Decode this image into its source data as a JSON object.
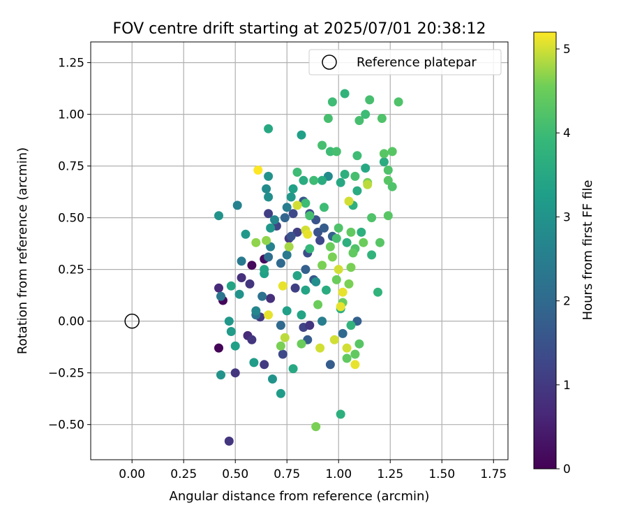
{
  "chart_data": {
    "type": "scatter",
    "title": "FOV centre drift starting at 2025/07/01 20:38:12",
    "xlabel": "Angular distance from reference (arcmin)",
    "ylabel": "Rotation from reference (arcmin)",
    "xlim": [
      -0.2,
      1.82
    ],
    "ylim": [
      -0.67,
      1.35
    ],
    "xticks": [
      "0.00",
      "0.25",
      "0.50",
      "0.75",
      "1.00",
      "1.25",
      "1.50",
      "1.75"
    ],
    "yticks": [
      "−0.50",
      "−0.25",
      "0.00",
      "0.25",
      "0.50",
      "0.75",
      "1.00",
      "1.25"
    ],
    "grid": true,
    "legend_position": "top-right",
    "legend": {
      "reference_label": "Reference platepar"
    },
    "reference_point": {
      "x": 0.0,
      "y": 0.0
    },
    "colorbar": {
      "label": "Hours from first FF file",
      "range": [
        0,
        5.2
      ],
      "ticks": [
        "0",
        "1",
        "2",
        "3",
        "4",
        "5"
      ],
      "colormap": "viridis"
    },
    "points": [
      {
        "x": 0.42,
        "y": -0.13,
        "h": 0.05
      },
      {
        "x": 0.44,
        "y": 0.1,
        "h": 0.1
      },
      {
        "x": 0.58,
        "y": 0.27,
        "h": 0.15
      },
      {
        "x": 0.64,
        "y": 0.3,
        "h": 0.2
      },
      {
        "x": 0.42,
        "y": 0.16,
        "h": 0.7
      },
      {
        "x": 0.47,
        "y": -0.58,
        "h": 0.9
      },
      {
        "x": 0.5,
        "y": -0.25,
        "h": 0.9
      },
      {
        "x": 0.53,
        "y": 0.21,
        "h": 0.8
      },
      {
        "x": 0.56,
        "y": -0.07,
        "h": 0.7
      },
      {
        "x": 0.57,
        "y": 0.18,
        "h": 0.9
      },
      {
        "x": 0.58,
        "y": -0.09,
        "h": 0.9
      },
      {
        "x": 0.62,
        "y": 0.02,
        "h": 1.0
      },
      {
        "x": 0.64,
        "y": -0.21,
        "h": 1.0
      },
      {
        "x": 0.66,
        "y": 0.52,
        "h": 1.1
      },
      {
        "x": 0.67,
        "y": 0.11,
        "h": 0.8
      },
      {
        "x": 0.7,
        "y": 0.46,
        "h": 1.2
      },
      {
        "x": 0.73,
        "y": -0.16,
        "h": 1.3
      },
      {
        "x": 0.76,
        "y": 0.4,
        "h": 1.0
      },
      {
        "x": 0.78,
        "y": 0.52,
        "h": 1.3
      },
      {
        "x": 0.8,
        "y": 0.43,
        "h": 1.1
      },
      {
        "x": 0.79,
        "y": 0.16,
        "h": 1.1
      },
      {
        "x": 0.83,
        "y": -0.03,
        "h": 1.2
      },
      {
        "x": 0.85,
        "y": 0.33,
        "h": 1.4
      },
      {
        "x": 0.86,
        "y": 0.52,
        "h": 1.4
      },
      {
        "x": 0.86,
        "y": -0.02,
        "h": 0.9
      },
      {
        "x": 0.88,
        "y": 0.2,
        "h": 1.6
      },
      {
        "x": 0.89,
        "y": 0.49,
        "h": 1.5
      },
      {
        "x": 0.9,
        "y": 0.43,
        "h": 1.5
      },
      {
        "x": 0.91,
        "y": 0.39,
        "h": 1.3
      },
      {
        "x": 0.93,
        "y": 0.45,
        "h": 1.7
      },
      {
        "x": 0.96,
        "y": -0.21,
        "h": 1.7
      },
      {
        "x": 0.97,
        "y": 0.41,
        "h": 1.8
      },
      {
        "x": 1.02,
        "y": -0.06,
        "h": 2.0
      },
      {
        "x": 1.09,
        "y": 0.0,
        "h": 1.8
      },
      {
        "x": 0.85,
        "y": -0.09,
        "h": 1.7
      },
      {
        "x": 0.84,
        "y": 0.25,
        "h": 1.8
      },
      {
        "x": 0.83,
        "y": 0.58,
        "h": 1.6
      },
      {
        "x": 0.77,
        "y": 0.41,
        "h": 1.5
      },
      {
        "x": 0.74,
        "y": 0.5,
        "h": 1.9
      },
      {
        "x": 0.72,
        "y": 0.28,
        "h": 2.0
      },
      {
        "x": 0.72,
        "y": -0.02,
        "h": 2.0
      },
      {
        "x": 0.66,
        "y": 0.31,
        "h": 2.1
      },
      {
        "x": 0.63,
        "y": 0.12,
        "h": 2.2
      },
      {
        "x": 0.6,
        "y": 0.03,
        "h": 2.2
      },
      {
        "x": 0.53,
        "y": 0.29,
        "h": 2.4
      },
      {
        "x": 0.51,
        "y": 0.56,
        "h": 2.6
      },
      {
        "x": 0.43,
        "y": 0.12,
        "h": 2.3
      },
      {
        "x": 0.67,
        "y": 0.36,
        "h": 2.6
      },
      {
        "x": 0.69,
        "y": 0.49,
        "h": 2.7
      },
      {
        "x": 0.75,
        "y": 0.55,
        "h": 2.5
      },
      {
        "x": 0.75,
        "y": 0.32,
        "h": 2.4
      },
      {
        "x": 0.92,
        "y": 0.0,
        "h": 2.5
      },
      {
        "x": 0.95,
        "y": 0.7,
        "h": 2.8
      },
      {
        "x": 0.66,
        "y": 0.6,
        "h": 2.9
      },
      {
        "x": 0.65,
        "y": 0.64,
        "h": 2.8
      },
      {
        "x": 0.66,
        "y": 0.7,
        "h": 3.0
      },
      {
        "x": 0.42,
        "y": 0.51,
        "h": 3.0
      },
      {
        "x": 0.43,
        "y": -0.26,
        "h": 3.0
      },
      {
        "x": 0.47,
        "y": 0.0,
        "h": 3.1
      },
      {
        "x": 0.48,
        "y": -0.05,
        "h": 3.2
      },
      {
        "x": 0.5,
        "y": -0.12,
        "h": 3.3
      },
      {
        "x": 0.48,
        "y": 0.17,
        "h": 3.4
      },
      {
        "x": 0.52,
        "y": 0.13,
        "h": 3.0
      },
      {
        "x": 0.55,
        "y": 0.42,
        "h": 3.1
      },
      {
        "x": 0.59,
        "y": -0.2,
        "h": 3.2
      },
      {
        "x": 0.64,
        "y": 0.23,
        "h": 3.3
      },
      {
        "x": 0.64,
        "y": 0.25,
        "h": 3.4
      },
      {
        "x": 0.67,
        "y": 0.45,
        "h": 3.1
      },
      {
        "x": 0.68,
        "y": -0.28,
        "h": 3.0
      },
      {
        "x": 0.72,
        "y": -0.35,
        "h": 3.2
      },
      {
        "x": 0.75,
        "y": 0.05,
        "h": 3.3
      },
      {
        "x": 0.78,
        "y": -0.23,
        "h": 3.5
      },
      {
        "x": 0.78,
        "y": 0.64,
        "h": 3.3
      },
      {
        "x": 0.8,
        "y": 0.22,
        "h": 3.4
      },
      {
        "x": 0.82,
        "y": 0.03,
        "h": 3.4
      },
      {
        "x": 0.84,
        "y": 0.15,
        "h": 3.4
      },
      {
        "x": 0.83,
        "y": 0.68,
        "h": 3.6
      },
      {
        "x": 0.82,
        "y": 0.9,
        "h": 3.3
      },
      {
        "x": 0.66,
        "y": 0.93,
        "h": 3.5
      },
      {
        "x": 0.92,
        "y": 0.68,
        "h": 3.6
      },
      {
        "x": 0.94,
        "y": 0.15,
        "h": 3.6
      },
      {
        "x": 1.01,
        "y": 0.67,
        "h": 3.5
      },
      {
        "x": 1.01,
        "y": 0.06,
        "h": 3.7
      },
      {
        "x": 1.01,
        "y": -0.45,
        "h": 3.7
      },
      {
        "x": 1.03,
        "y": 0.71,
        "h": 3.7
      },
      {
        "x": 1.04,
        "y": 0.38,
        "h": 3.7
      },
      {
        "x": 1.06,
        "y": -0.02,
        "h": 3.8
      },
      {
        "x": 1.07,
        "y": 0.56,
        "h": 3.7
      },
      {
        "x": 1.09,
        "y": 0.63,
        "h": 3.6
      },
      {
        "x": 1.11,
        "y": 0.43,
        "h": 3.7
      },
      {
        "x": 1.13,
        "y": 0.74,
        "h": 3.5
      },
      {
        "x": 1.22,
        "y": 0.77,
        "h": 3.6
      },
      {
        "x": 1.03,
        "y": 1.1,
        "h": 3.8
      },
      {
        "x": 1.19,
        "y": 0.14,
        "h": 3.8
      },
      {
        "x": 1.16,
        "y": 0.32,
        "h": 3.8
      },
      {
        "x": 0.86,
        "y": 0.35,
        "h": 3.9
      },
      {
        "x": 0.8,
        "y": 0.72,
        "h": 4.0
      },
      {
        "x": 0.84,
        "y": 0.57,
        "h": 4.0
      },
      {
        "x": 0.86,
        "y": 0.51,
        "h": 4.1
      },
      {
        "x": 0.88,
        "y": 0.68,
        "h": 4.0
      },
      {
        "x": 0.92,
        "y": 0.85,
        "h": 4.1
      },
      {
        "x": 0.93,
        "y": 0.55,
        "h": 4.0
      },
      {
        "x": 0.96,
        "y": 0.82,
        "h": 4.0
      },
      {
        "x": 0.95,
        "y": 0.98,
        "h": 4.1
      },
      {
        "x": 0.97,
        "y": 1.06,
        "h": 4.0
      },
      {
        "x": 0.99,
        "y": 0.82,
        "h": 4.1
      },
      {
        "x": 1.0,
        "y": 0.45,
        "h": 4.2
      },
      {
        "x": 0.99,
        "y": 0.4,
        "h": 4.1
      },
      {
        "x": 1.08,
        "y": 0.7,
        "h": 4.1
      },
      {
        "x": 1.08,
        "y": 0.35,
        "h": 4.2
      },
      {
        "x": 1.1,
        "y": 0.97,
        "h": 4.1
      },
      {
        "x": 1.13,
        "y": 1.0,
        "h": 4.0
      },
      {
        "x": 1.15,
        "y": 1.07,
        "h": 4.1
      },
      {
        "x": 1.16,
        "y": 0.5,
        "h": 4.2
      },
      {
        "x": 1.2,
        "y": 0.38,
        "h": 4.3
      },
      {
        "x": 1.21,
        "y": 0.98,
        "h": 4.2
      },
      {
        "x": 1.22,
        "y": 0.81,
        "h": 4.3
      },
      {
        "x": 1.24,
        "y": 0.73,
        "h": 4.2
      },
      {
        "x": 1.24,
        "y": 0.68,
        "h": 4.3
      },
      {
        "x": 1.24,
        "y": 0.51,
        "h": 4.3
      },
      {
        "x": 1.26,
        "y": 0.65,
        "h": 4.2
      },
      {
        "x": 1.26,
        "y": 0.82,
        "h": 4.3
      },
      {
        "x": 1.29,
        "y": 1.06,
        "h": 4.2
      },
      {
        "x": 0.82,
        "y": -0.11,
        "h": 4.5
      },
      {
        "x": 0.89,
        "y": -0.51,
        "h": 4.6
      },
      {
        "x": 0.9,
        "y": 0.08,
        "h": 4.5
      },
      {
        "x": 0.92,
        "y": 0.27,
        "h": 4.6
      },
      {
        "x": 0.96,
        "y": 0.36,
        "h": 4.5
      },
      {
        "x": 0.97,
        "y": 0.31,
        "h": 4.6
      },
      {
        "x": 0.99,
        "y": 0.2,
        "h": 4.5
      },
      {
        "x": 1.02,
        "y": 0.09,
        "h": 4.5
      },
      {
        "x": 1.04,
        "y": -0.18,
        "h": 4.4
      },
      {
        "x": 1.05,
        "y": 0.18,
        "h": 4.6
      },
      {
        "x": 1.06,
        "y": 0.26,
        "h": 4.6
      },
      {
        "x": 1.06,
        "y": 0.43,
        "h": 4.4
      },
      {
        "x": 1.08,
        "y": -0.16,
        "h": 4.4
      },
      {
        "x": 1.1,
        "y": -0.11,
        "h": 4.3
      },
      {
        "x": 1.12,
        "y": 0.38,
        "h": 4.5
      },
      {
        "x": 1.14,
        "y": 0.67,
        "h": 4.6
      },
      {
        "x": 0.6,
        "y": 0.38,
        "h": 4.7
      },
      {
        "x": 0.65,
        "y": 0.39,
        "h": 4.7
      },
      {
        "x": 0.76,
        "y": 0.36,
        "h": 4.8
      },
      {
        "x": 0.74,
        "y": -0.08,
        "h": 4.9
      },
      {
        "x": 0.72,
        "y": -0.12,
        "h": 4.6
      },
      {
        "x": 0.8,
        "y": 0.56,
        "h": 5.0
      },
      {
        "x": 0.84,
        "y": 0.44,
        "h": 5.0
      },
      {
        "x": 0.85,
        "y": 0.42,
        "h": 5.1
      },
      {
        "x": 0.91,
        "y": -0.13,
        "h": 5.0
      },
      {
        "x": 0.98,
        "y": -0.09,
        "h": 5.0
      },
      {
        "x": 1.0,
        "y": 0.25,
        "h": 5.0
      },
      {
        "x": 1.01,
        "y": 0.07,
        "h": 5.1
      },
      {
        "x": 1.02,
        "y": 0.14,
        "h": 5.1
      },
      {
        "x": 1.04,
        "y": -0.13,
        "h": 5.0
      },
      {
        "x": 1.05,
        "y": 0.58,
        "h": 5.0
      },
      {
        "x": 1.08,
        "y": -0.21,
        "h": 5.1
      },
      {
        "x": 0.61,
        "y": 0.73,
        "h": 5.2
      },
      {
        "x": 0.73,
        "y": 0.17,
        "h": 5.1
      },
      {
        "x": 0.66,
        "y": 0.03,
        "h": 5.1
      },
      {
        "x": 1.14,
        "y": 0.66,
        "h": 4.9
      },
      {
        "x": 1.07,
        "y": 0.33,
        "h": 4.4
      },
      {
        "x": 1.09,
        "y": 0.8,
        "h": 4.0
      },
      {
        "x": 0.77,
        "y": 0.6,
        "h": 3.1
      },
      {
        "x": 0.89,
        "y": 0.19,
        "h": 2.9
      },
      {
        "x": 0.6,
        "y": 0.05,
        "h": 2.7
      }
    ]
  }
}
